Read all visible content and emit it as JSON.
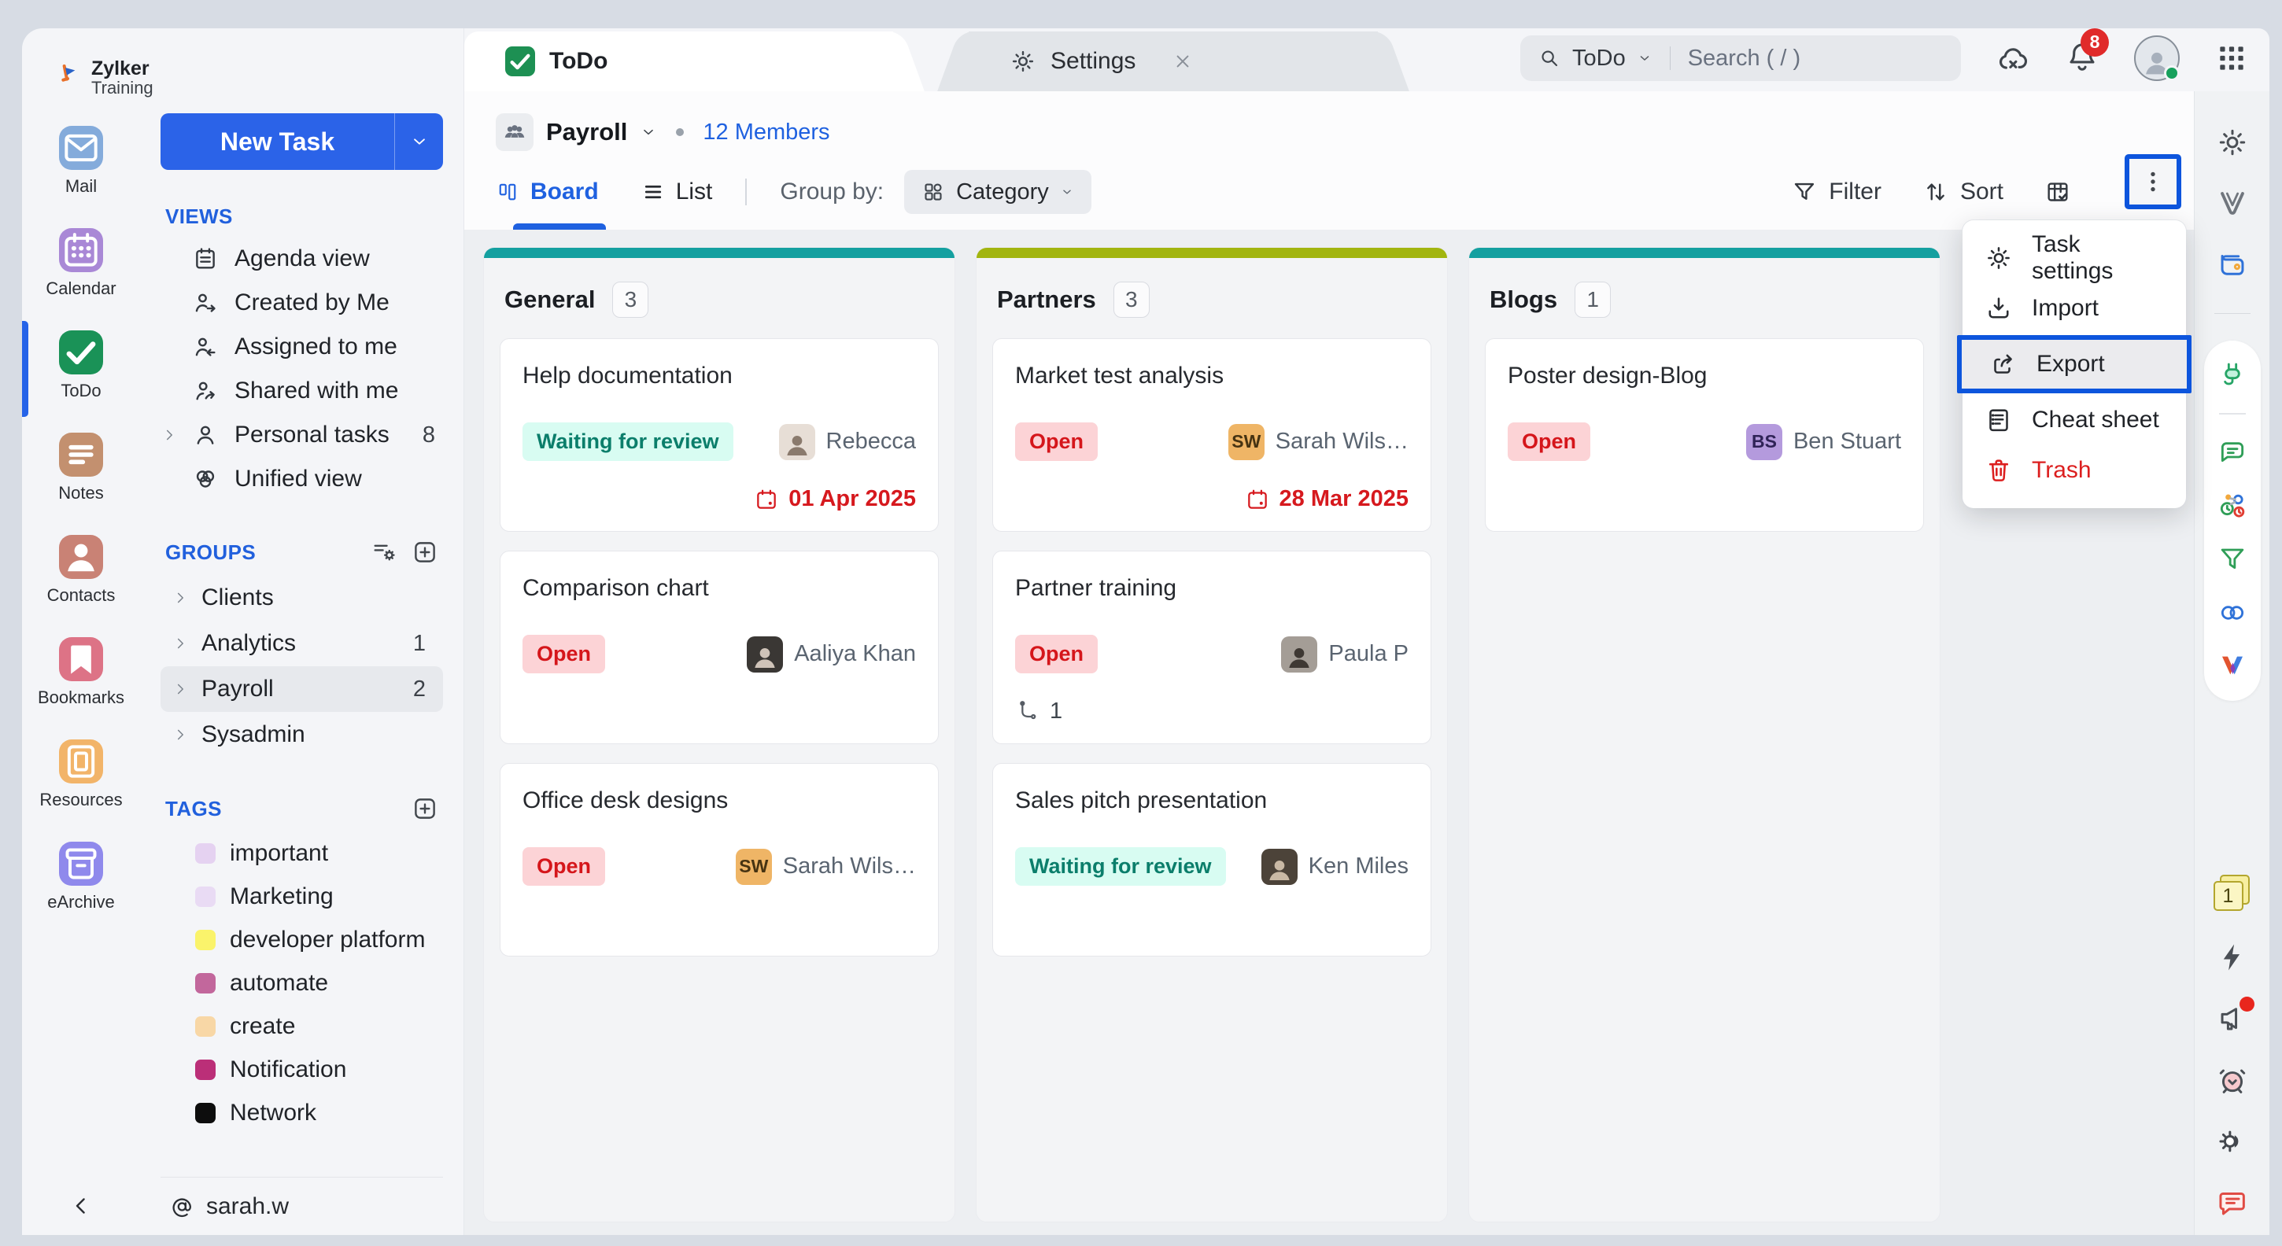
{
  "brand": {
    "line1": "Zylker",
    "line2": "Training"
  },
  "app_rail": [
    {
      "id": "mail",
      "label": "Mail",
      "icon": "envelope",
      "color": "#84abdb",
      "active": false
    },
    {
      "id": "calendar",
      "label": "Calendar",
      "icon": "calendar",
      "color": "#a988d6",
      "active": false
    },
    {
      "id": "todo",
      "label": "ToDo",
      "icon": "check",
      "color": "#1a9257",
      "active": true
    },
    {
      "id": "notes",
      "label": "Notes",
      "icon": "note-lines",
      "color": "#c3906f",
      "active": false
    },
    {
      "id": "contacts",
      "label": "Contacts",
      "icon": "person-solid",
      "color": "#c98275",
      "active": false
    },
    {
      "id": "bookmarks",
      "label": "Bookmarks",
      "icon": "bookmark",
      "color": "#dd7386",
      "active": false
    },
    {
      "id": "resources",
      "label": "Resources",
      "icon": "resource-card",
      "color": "#f2b469",
      "active": false
    },
    {
      "id": "earchive",
      "label": "eArchive",
      "icon": "archive-box",
      "color": "#8f89ec",
      "active": false
    }
  ],
  "sidebar": {
    "new_task_label": "New Task",
    "views": {
      "title": "VIEWS",
      "items": [
        {
          "label": "Agenda view",
          "icon": "agenda"
        },
        {
          "label": "Created by Me",
          "icon": "person-out"
        },
        {
          "label": "Assigned to me",
          "icon": "person-in"
        },
        {
          "label": "Shared with me",
          "icon": "person-share"
        },
        {
          "label": "Personal tasks",
          "icon": "person",
          "chevron": true,
          "count": "8"
        },
        {
          "label": "Unified view",
          "icon": "unified"
        }
      ]
    },
    "groups": {
      "title": "GROUPS",
      "items": [
        {
          "label": "Clients"
        },
        {
          "label": "Analytics",
          "count": "1"
        },
        {
          "label": "Payroll",
          "count": "2",
          "selected": true
        },
        {
          "label": "Sysadmin"
        }
      ]
    },
    "tags": {
      "title": "TAGS",
      "items": [
        {
          "label": "important",
          "color": "#e5d2f1"
        },
        {
          "label": "Marketing",
          "color": "#e9dbf4"
        },
        {
          "label": "developer platform",
          "color": "#faf36b"
        },
        {
          "label": "automate",
          "color": "#c2679c"
        },
        {
          "label": "create",
          "color": "#f8d7a6"
        },
        {
          "label": "Notification",
          "color": "#bb2f78"
        },
        {
          "label": "Network",
          "color": "#0d0d0d"
        }
      ]
    },
    "account_prefix": "@",
    "account": "sarah.w"
  },
  "tabs": [
    {
      "id": "todo",
      "label": "ToDo",
      "active": true,
      "closable": false
    },
    {
      "id": "settings",
      "label": "Settings",
      "active": false,
      "closable": true
    }
  ],
  "topbar": {
    "search_scope": "ToDo",
    "search_placeholder": "Search ( / )",
    "notification_count": "8"
  },
  "toolbar": {
    "group_name": "Payroll",
    "members_label": "12 Members",
    "board_label": "Board",
    "list_label": "List",
    "group_by_label": "Group by:",
    "group_by_value": "Category",
    "filter_label": "Filter",
    "sort_label": "Sort"
  },
  "menu": {
    "items": [
      {
        "label": "Task settings",
        "icon": "gear"
      },
      {
        "label": "Import",
        "icon": "import"
      },
      {
        "label": "Export",
        "icon": "export",
        "highlighted": true
      },
      {
        "label": "Cheat sheet",
        "icon": "sheet"
      },
      {
        "label": "Trash",
        "icon": "trash",
        "danger": true
      }
    ]
  },
  "board": {
    "columns": [
      {
        "title": "General",
        "count": "3",
        "accent": "#14a0a0",
        "cards": [
          {
            "title": "Help documentation",
            "status": "Waiting for review",
            "status_type": "review",
            "assignee": {
              "name": "Rebecca",
              "type": "photo",
              "bg": "#e7ded6",
              "fg": "#8a7a6d"
            },
            "due": "01 Apr 2025"
          },
          {
            "title": "Comparison chart",
            "status": "Open",
            "status_type": "open",
            "assignee": {
              "name": "Aaliya Khan",
              "type": "photo",
              "bg": "#3a3734",
              "fg": "#cfc3b8"
            }
          },
          {
            "title": "Office desk designs",
            "status": "Open",
            "status_type": "open",
            "assignee": {
              "name": "Sarah Wils…",
              "type": "initials",
              "initials": "SW",
              "bg": "#efb566",
              "fg": "#463312"
            }
          }
        ]
      },
      {
        "title": "Partners",
        "count": "3",
        "accent": "#a2b50f",
        "cards": [
          {
            "title": "Market test anal­ysis",
            "status": "Open",
            "status_type": "open",
            "assignee": {
              "name": "Sarah Wils…",
              "type": "initials",
              "initials": "SW",
              "bg": "#efb566",
              "fg": "#463312"
            },
            "due": "28 Mar 2025"
          },
          {
            "title": "Partner training",
            "status": "Open",
            "status_type": "open",
            "assignee": {
              "name": "Paula P",
              "type": "photo",
              "bg": "#a49d96",
              "fg": "#3e3833"
            },
            "subtasks": "1"
          },
          {
            "title": "Sales pitch presentation",
            "status": "Waiting for review",
            "status_type": "review",
            "assignee": {
              "name": "Ken Miles",
              "type": "photo",
              "bg": "#4c4339",
              "fg": "#c9b9a5"
            }
          }
        ]
      },
      {
        "title": "Blogs",
        "count": "1",
        "accent": "#14a0a0",
        "cards": [
          {
            "title": "Poster design-Blog",
            "status": "Open",
            "status_type": "open",
            "assignee": {
              "name": "Ben Stuart",
              "type": "initials",
              "initials": "BS",
              "bg": "#b49add",
              "fg": "#2f2357"
            }
          }
        ]
      }
    ]
  },
  "right_rail": {
    "sticky_count": "1"
  },
  "colors": {
    "accent_blue": "#0d55dd",
    "link_blue": "#1f61e0",
    "open_bg": "#fcd3d6",
    "open_fg": "#d5161b",
    "review_bg": "#d8fcf2",
    "review_fg": "#0b7e6b",
    "due_red": "#d6191e"
  }
}
